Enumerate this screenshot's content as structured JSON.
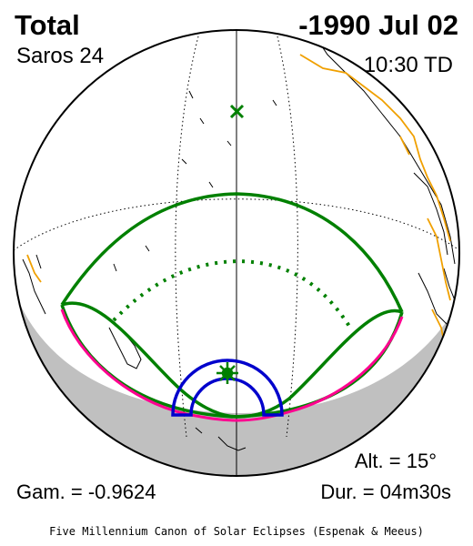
{
  "header": {
    "eclipse_type": "Total",
    "date": "-1990 Jul 02",
    "saros": "Saros  24",
    "time": "10:30 TD"
  },
  "footer": {
    "altitude": "Alt. = 15°",
    "gamma": "Gam. = -0.9624",
    "duration": "Dur. = 04m30s",
    "credit": "Five Millennium Canon of Solar Eclipses (Espenak & Meeus)"
  },
  "colors": {
    "globe_outline": "#000000",
    "night_side": "#c0c0c0",
    "coastlines": "#000000",
    "political_boundaries": "#f0a000",
    "penumbra_limits": "#008000",
    "central_path": "#ff0090",
    "umbra_circle": "#0000cc",
    "greatest_eclipse_marker": "#008000"
  },
  "icons": {
    "greatest_eclipse": "sun-star-icon",
    "sub_solar_point": "x-marker-icon"
  }
}
